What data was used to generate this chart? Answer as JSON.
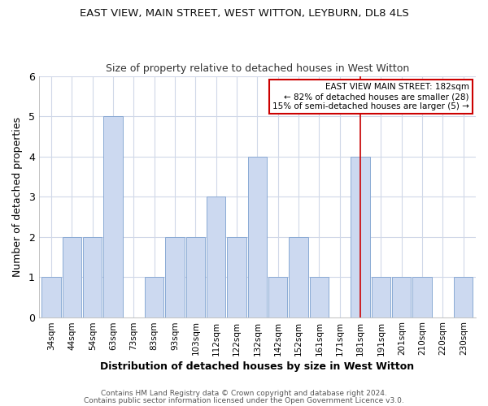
{
  "title1": "EAST VIEW, MAIN STREET, WEST WITTON, LEYBURN, DL8 4LS",
  "title2": "Size of property relative to detached houses in West Witton",
  "xlabel": "Distribution of detached houses by size in West Witton",
  "ylabel": "Number of detached properties",
  "categories": [
    "34sqm",
    "44sqm",
    "54sqm",
    "63sqm",
    "73sqm",
    "83sqm",
    "93sqm",
    "103sqm",
    "112sqm",
    "122sqm",
    "132sqm",
    "142sqm",
    "152sqm",
    "161sqm",
    "171sqm",
    "181sqm",
    "191sqm",
    "201sqm",
    "210sqm",
    "220sqm",
    "230sqm"
  ],
  "values": [
    1,
    2,
    2,
    5,
    0,
    1,
    2,
    2,
    3,
    2,
    4,
    1,
    2,
    1,
    0,
    4,
    1,
    1,
    1,
    0,
    1
  ],
  "bar_color": "#ccd9f0",
  "bar_edge_color": "#8aaad4",
  "red_line_index": 15,
  "annotation_title": "EAST VIEW MAIN STREET: 182sqm",
  "annotation_line1": "← 82% of detached houses are smaller (28)",
  "annotation_line2": "15% of semi-detached houses are larger (5) →",
  "annotation_box_color": "#ffffff",
  "annotation_box_edge": "#cc0000",
  "red_line_color": "#cc0000",
  "ylim": [
    0,
    6
  ],
  "yticks": [
    0,
    1,
    2,
    3,
    4,
    5,
    6
  ],
  "footer1": "Contains HM Land Registry data © Crown copyright and database right 2024.",
  "footer2": "Contains public sector information licensed under the Open Government Licence v3.0.",
  "background_color": "#ffffff",
  "grid_color": "#d0d8e8"
}
